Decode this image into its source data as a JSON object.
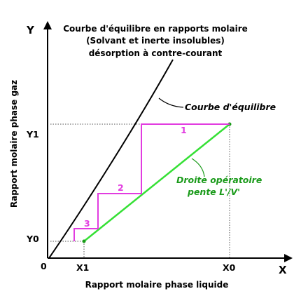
{
  "title": {
    "line1": "Courbe d'équilibre en rapports molaire",
    "line2": "(Solvant et inerte insolubles)",
    "line3": "désorption à contre-courant"
  },
  "axes": {
    "x_letter": "X",
    "y_letter": "Y",
    "origin": "0",
    "x_label": "Rapport molaire phase liquide",
    "y_label": "Rapport molaire phase gaz",
    "x_ticks": [
      "X1",
      "X0"
    ],
    "y_ticks": [
      "Y0",
      "Y1"
    ]
  },
  "callouts": {
    "equilibrium": "Courbe d'équilibre",
    "operating_line1": "Droite opératoire",
    "operating_line2": "pente  L'/V'"
  },
  "stages": [
    "1",
    "2",
    "3"
  ],
  "colors": {
    "equilibrium_curve": "#000000",
    "operating_line": "#35e035",
    "stages": "#e23ce0",
    "guides": "#555555"
  }
}
